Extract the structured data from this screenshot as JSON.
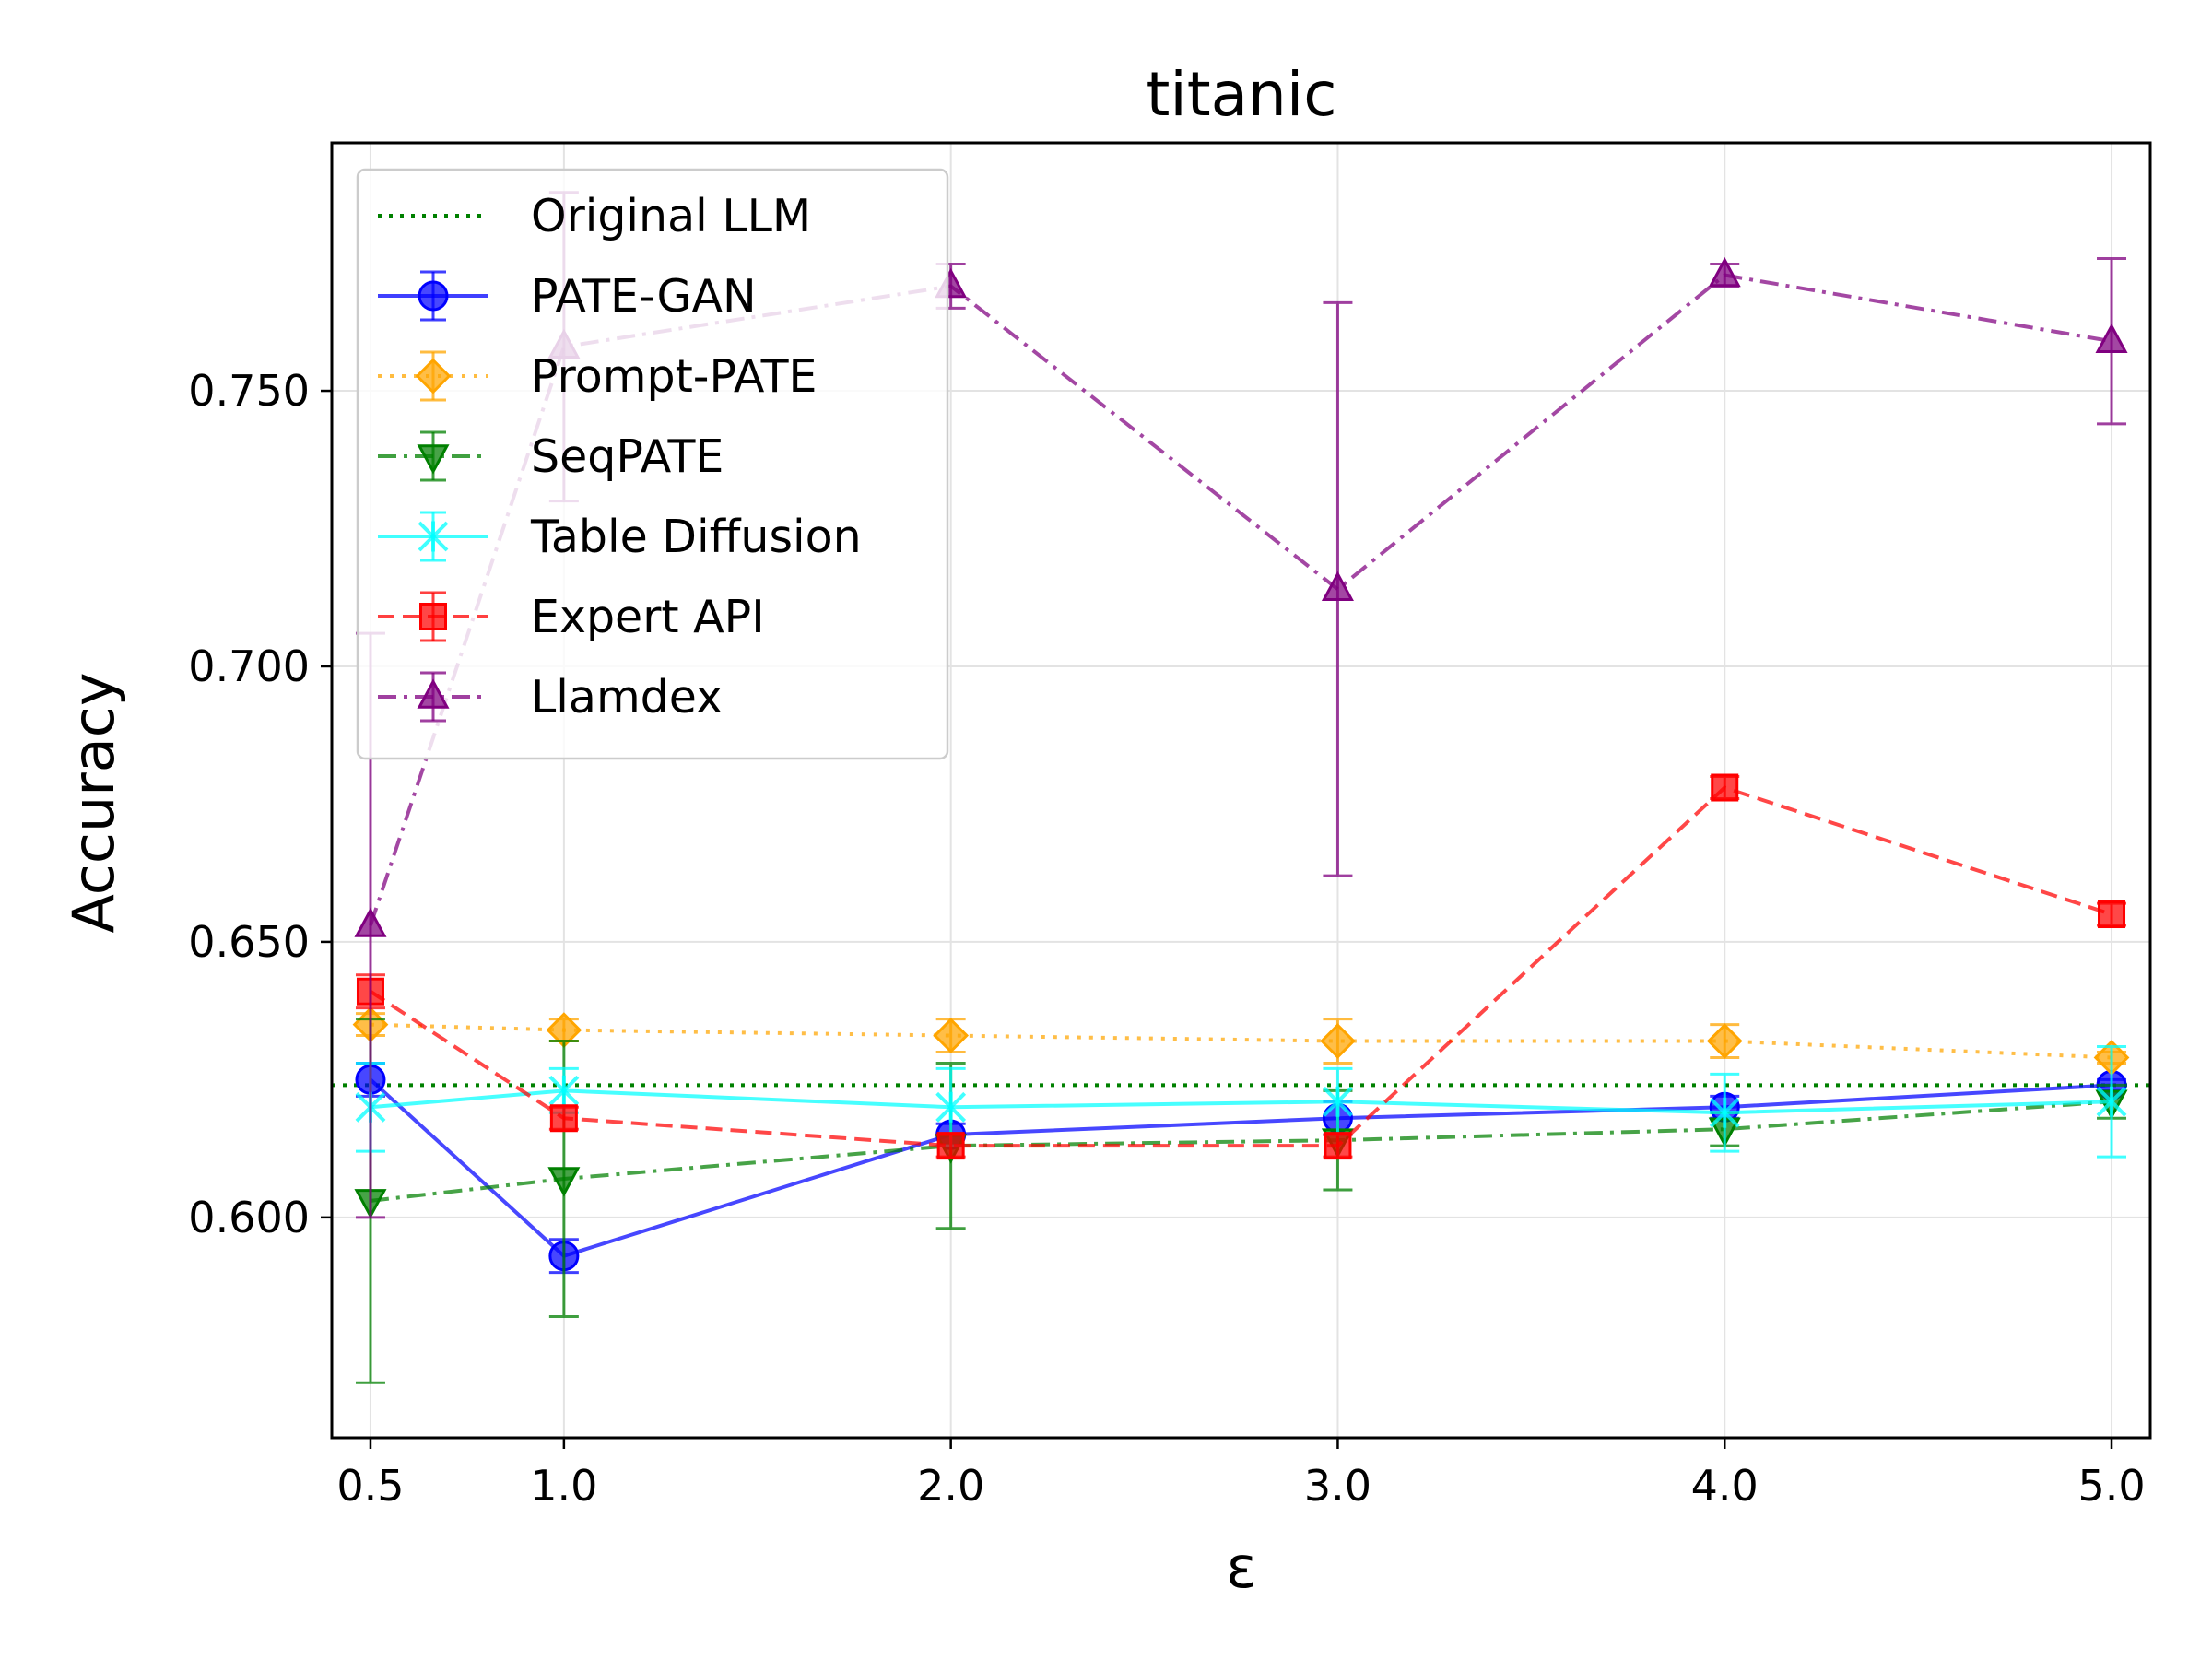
{
  "chart_data": {
    "type": "line",
    "title": "titanic",
    "xlabel": "ε",
    "ylabel": "Accuracy",
    "x": [
      0.5,
      1.0,
      2.0,
      3.0,
      4.0,
      5.0
    ],
    "x_tick_labels": [
      "0.5",
      "1.0",
      "2.0",
      "3.0",
      "4.0",
      "5.0"
    ],
    "xlim": [
      0.4,
      5.1
    ],
    "ylim": [
      0.56,
      0.795
    ],
    "y_ticks": [
      0.6,
      0.65,
      0.7,
      0.75
    ],
    "y_tick_labels": [
      "0.600",
      "0.650",
      "0.700",
      "0.750"
    ],
    "grid": true,
    "legend_position": "upper-left",
    "reference_line": {
      "name": "Original LLM",
      "value": 0.624,
      "color": "#008000",
      "style": "dotted"
    },
    "series": [
      {
        "name": "PATE-GAN",
        "color": "#0000ff",
        "marker": "circle",
        "style": "solid",
        "values": [
          0.625,
          0.593,
          0.615,
          0.618,
          0.62,
          0.624
        ],
        "errors": [
          0.003,
          0.003,
          0.002,
          0.003,
          0.002,
          0.001
        ]
      },
      {
        "name": "Prompt-PATE",
        "color": "#ffa500",
        "marker": "diamond",
        "style": "dotted",
        "values": [
          0.635,
          0.634,
          0.633,
          0.632,
          0.632,
          0.629
        ],
        "errors": [
          0.002,
          0.002,
          0.003,
          0.004,
          0.003,
          0.001
        ]
      },
      {
        "name": "SeqPATE",
        "color": "#008000",
        "marker": "triangle-down",
        "style": "dashdot",
        "values": [
          0.603,
          0.607,
          0.613,
          0.614,
          0.616,
          0.621
        ],
        "errors": [
          0.033,
          0.025,
          0.015,
          0.009,
          0.003,
          0.003
        ]
      },
      {
        "name": "Table Diffusion",
        "color": "#00ffff",
        "marker": "x-star",
        "style": "solid",
        "values": [
          0.62,
          0.623,
          0.62,
          0.621,
          0.619,
          0.621
        ],
        "errors": [
          0.008,
          0.004,
          0.007,
          0.006,
          0.007,
          0.01
        ]
      },
      {
        "name": "Expert API",
        "color": "#ff0000",
        "marker": "square",
        "style": "dashed",
        "values": [
          0.641,
          0.618,
          0.613,
          0.613,
          0.678,
          0.655
        ],
        "errors": [
          0.003,
          0.002,
          0.002,
          0.002,
          0.002,
          0.002
        ]
      },
      {
        "name": "Llamdex",
        "color": "#800080",
        "marker": "triangle-up",
        "style": "dashdot",
        "values": [
          0.653,
          0.758,
          0.769,
          0.714,
          0.771,
          0.759
        ],
        "errors": [
          0.053,
          0.028,
          0.004,
          0.052,
          0.002,
          0.015
        ]
      }
    ]
  }
}
